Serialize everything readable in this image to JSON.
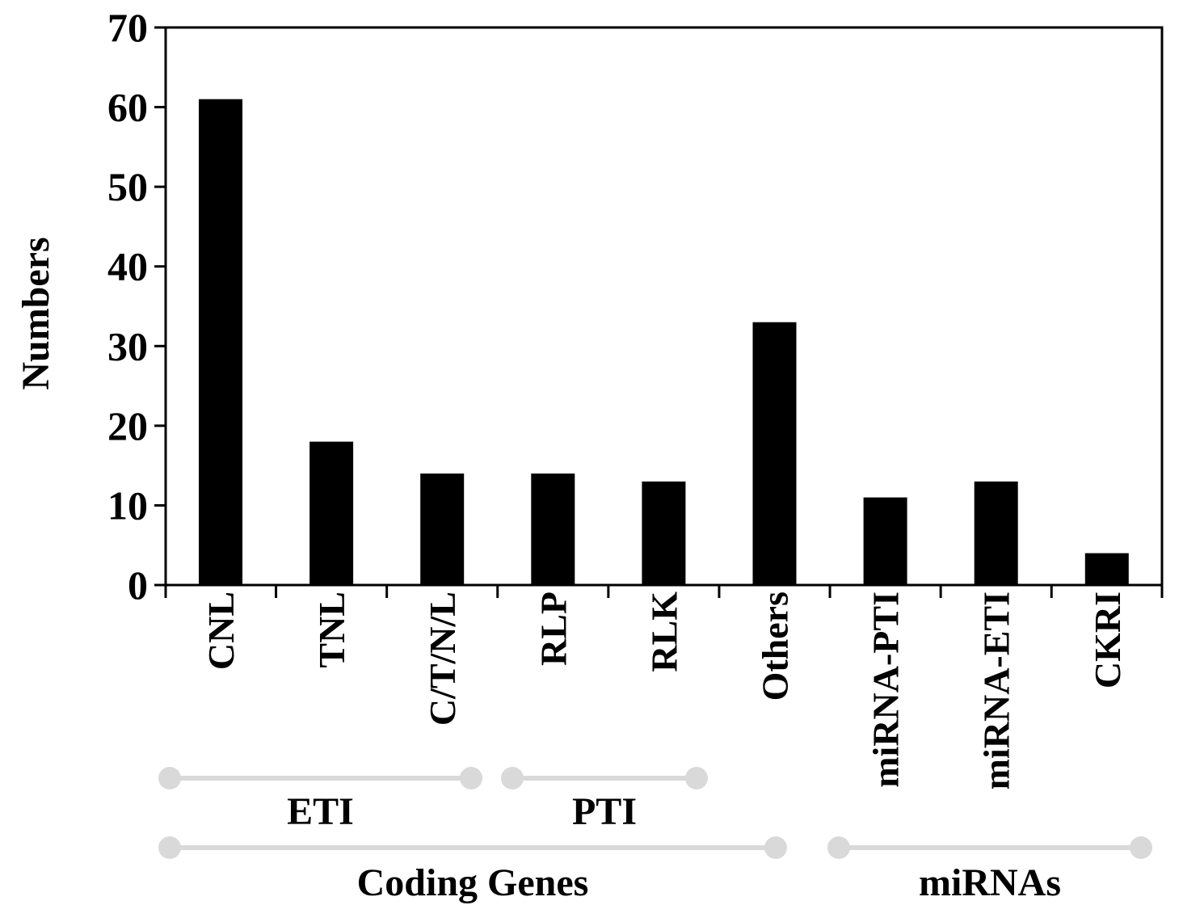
{
  "chart_data": {
    "type": "bar",
    "ylabel": "Numbers",
    "ylim": [
      0,
      70
    ],
    "yticks": [
      0,
      10,
      20,
      30,
      40,
      50,
      60,
      70
    ],
    "categories": [
      "CNL",
      "TNL",
      "C/T/N/L",
      "RLP",
      "RLK",
      "Others",
      "miRNA-PTI",
      "miRNA-ETI",
      "CKRI"
    ],
    "values": [
      61,
      18,
      14,
      14,
      13,
      33,
      11,
      13,
      4
    ],
    "bar_color": "#000000",
    "groups": [
      {
        "label": "ETI",
        "start": 0,
        "end": 2
      },
      {
        "label": "PTI",
        "start": 3,
        "end": 4
      },
      {
        "label": "Coding Genes",
        "start": 0,
        "end": 5
      },
      {
        "label": "miRNAs",
        "start": 6,
        "end": 8
      }
    ],
    "bracket_color": "#d9d9d9"
  }
}
